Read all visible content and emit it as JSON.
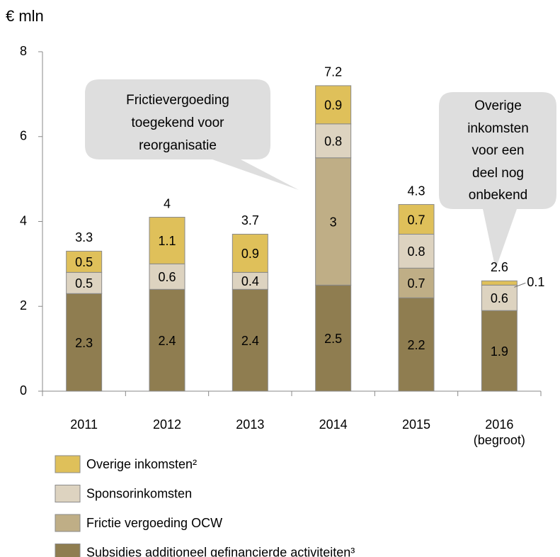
{
  "chart_data": {
    "type": "stacked_bar",
    "ylabel": "€ mln",
    "categories": [
      "2011",
      "2012",
      "2013",
      "2014",
      "2015",
      "2016\n(begroot)"
    ],
    "series": [
      {
        "name": "Subsidies additioneel gefinancierde activiteiten³",
        "color": "#8f7d50",
        "values": [
          2.3,
          2.4,
          2.4,
          2.5,
          2.2,
          1.9
        ]
      },
      {
        "name": "Frictie vergoeding OCW",
        "color": "#bfae86",
        "values": [
          null,
          null,
          null,
          3.0,
          0.7,
          null
        ]
      },
      {
        "name": "Sponsorinkomsten",
        "color": "#ddd3c0",
        "values": [
          0.5,
          0.6,
          0.4,
          0.8,
          0.8,
          0.6
        ]
      },
      {
        "name": "Overige inkomsten²",
        "color": "#dfc05a",
        "values": [
          0.5,
          1.1,
          0.9,
          0.9,
          0.7,
          0.1
        ]
      }
    ],
    "totals": [
      3.3,
      4.0,
      3.7,
      7.2,
      4.3,
      2.6
    ],
    "annotations": [
      "Frictievergoeding\ntoegekend voor\nreorganisatie",
      "Overige\ninkomsten\nvoor een\ndeel nog\nonbekend"
    ],
    "ylim": [
      0,
      8
    ],
    "yticks": [
      0,
      2,
      4,
      6,
      8
    ]
  }
}
